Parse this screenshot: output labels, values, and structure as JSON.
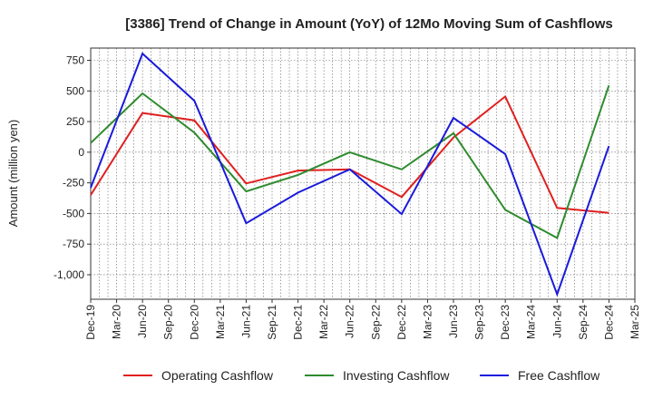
{
  "chart_data": {
    "type": "line",
    "title": "[3386]  Trend of Change in Amount (YoY) of 12Mo Moving Sum of Cashflows",
    "xlabel": "",
    "ylabel": "Amount (million yen)",
    "ylim": [
      -1200,
      850
    ],
    "yticks": [
      750,
      500,
      250,
      0,
      -250,
      -500,
      -750,
      -1000
    ],
    "ytick_labels": [
      "750",
      "500",
      "250",
      "0",
      "-250",
      "-500",
      "-750",
      "-1,000"
    ],
    "categories": [
      "Dec-19",
      "Mar-20",
      "Jun-20",
      "Sep-20",
      "Dec-20",
      "Mar-21",
      "Jun-21",
      "Sep-21",
      "Dec-21",
      "Mar-22",
      "Jun-22",
      "Sep-22",
      "Dec-22",
      "Mar-23",
      "Jun-23",
      "Sep-23",
      "Dec-23",
      "Mar-24",
      "Jun-24",
      "Sep-24",
      "Dec-24",
      "Mar-25"
    ],
    "legend_position": "bottom",
    "grid": true,
    "series": [
      {
        "name": "Operating Cashflow",
        "color": "#e02020",
        "x": [
          "Dec-19",
          "Jun-20",
          "Dec-20",
          "Jun-21",
          "Dec-21",
          "Jun-22",
          "Dec-22",
          "Jun-23",
          "Dec-23",
          "Jun-24",
          "Dec-24"
        ],
        "values": [
          -350,
          320,
          260,
          -255,
          -150,
          -140,
          -365,
          120,
          455,
          -455,
          -495
        ]
      },
      {
        "name": "Investing Cashflow",
        "color": "#2e8b2e",
        "x": [
          "Dec-19",
          "Jun-20",
          "Dec-20",
          "Jun-21",
          "Dec-21",
          "Jun-22",
          "Dec-22",
          "Jun-23",
          "Dec-23",
          "Jun-24",
          "Dec-24"
        ],
        "values": [
          75,
          480,
          160,
          -320,
          -185,
          0,
          -140,
          155,
          -470,
          -700,
          545
        ]
      },
      {
        "name": "Free Cashflow",
        "color": "#1a1adb",
        "x": [
          "Dec-19",
          "Jun-20",
          "Dec-20",
          "Jun-21",
          "Dec-21",
          "Jun-22",
          "Dec-22",
          "Jun-23",
          "Dec-23",
          "Jun-24",
          "Dec-24"
        ],
        "values": [
          -290,
          805,
          420,
          -580,
          -330,
          -140,
          -505,
          280,
          -15,
          -1160,
          50
        ]
      }
    ]
  }
}
